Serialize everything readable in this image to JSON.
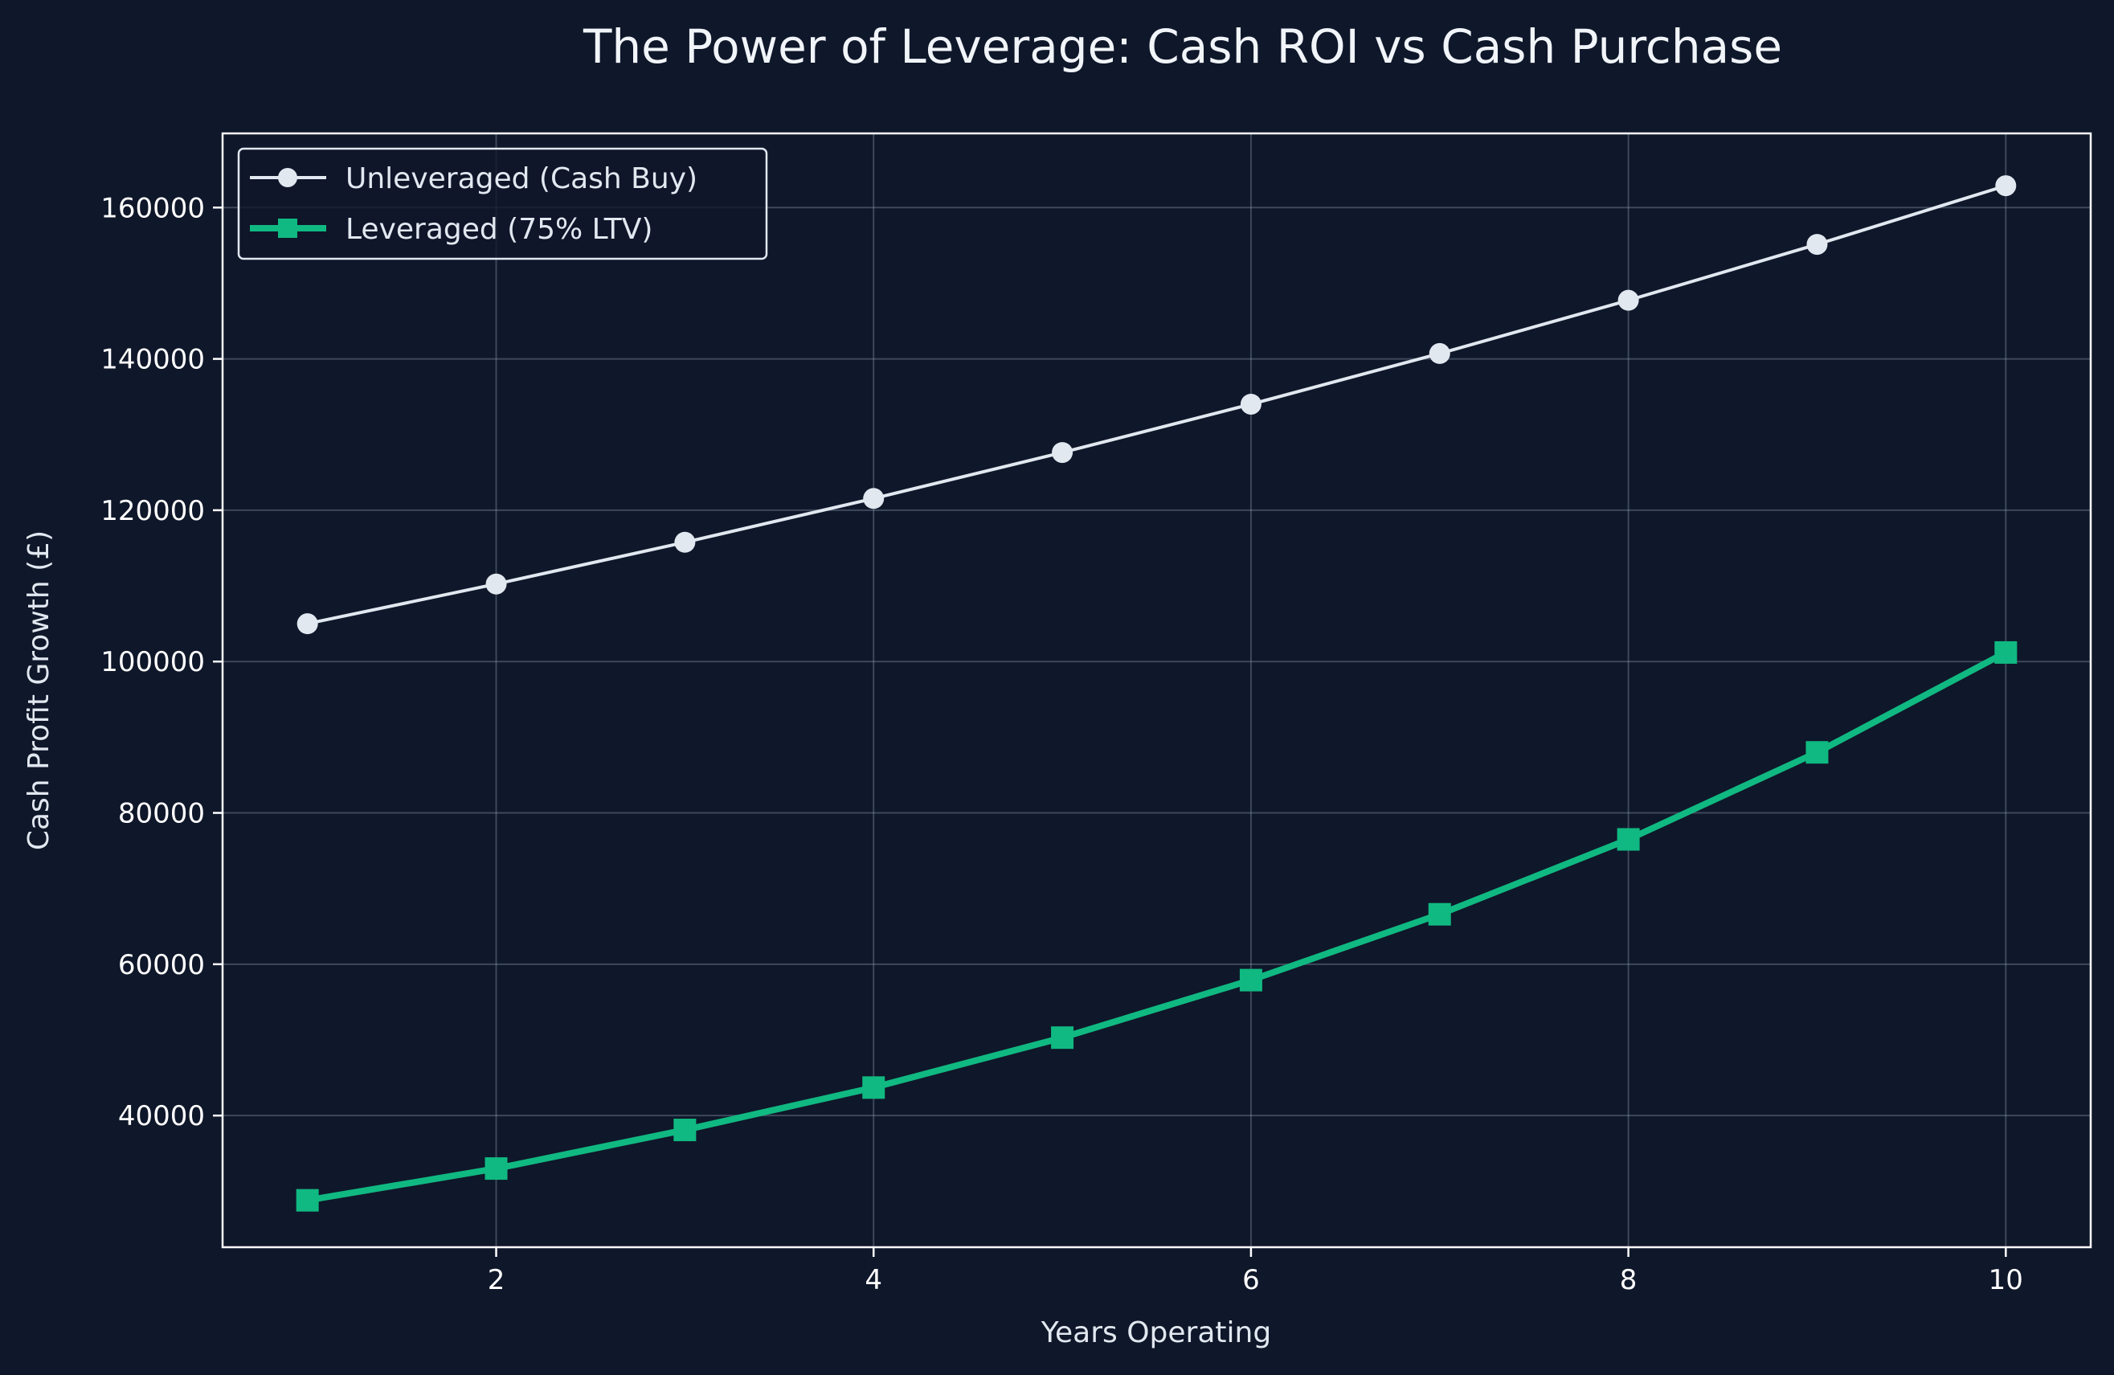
{
  "chart_data": {
    "type": "line",
    "title": "The Power of Leverage: Cash ROI vs Cash Purchase",
    "xlabel": "Years Operating",
    "ylabel": "Cash Profit Growth (£)",
    "x": [
      1,
      2,
      3,
      4,
      5,
      6,
      7,
      8,
      9,
      10
    ],
    "xlim": [
      0.55,
      10.45
    ],
    "ylim": [
      22600,
      169800
    ],
    "xticks": [
      2,
      4,
      6,
      8,
      10
    ],
    "yticks": [
      40000,
      60000,
      80000,
      100000,
      120000,
      140000,
      160000
    ],
    "grid": true,
    "legend_position": "top-left",
    "series": [
      {
        "name": "Unleveraged (Cash Buy)",
        "values": [
          105000,
          110250,
          115763,
          121551,
          127628,
          134010,
          140710,
          147746,
          155133,
          162889
        ],
        "color": "#e2e8f0",
        "marker": "circle"
      },
      {
        "name": "Leveraged (75% LTV)",
        "values": [
          28800,
          33000,
          38100,
          43700,
          50300,
          57900,
          66600,
          76500,
          88000,
          101200
        ],
        "color": "#10b981",
        "marker": "square"
      }
    ]
  }
}
